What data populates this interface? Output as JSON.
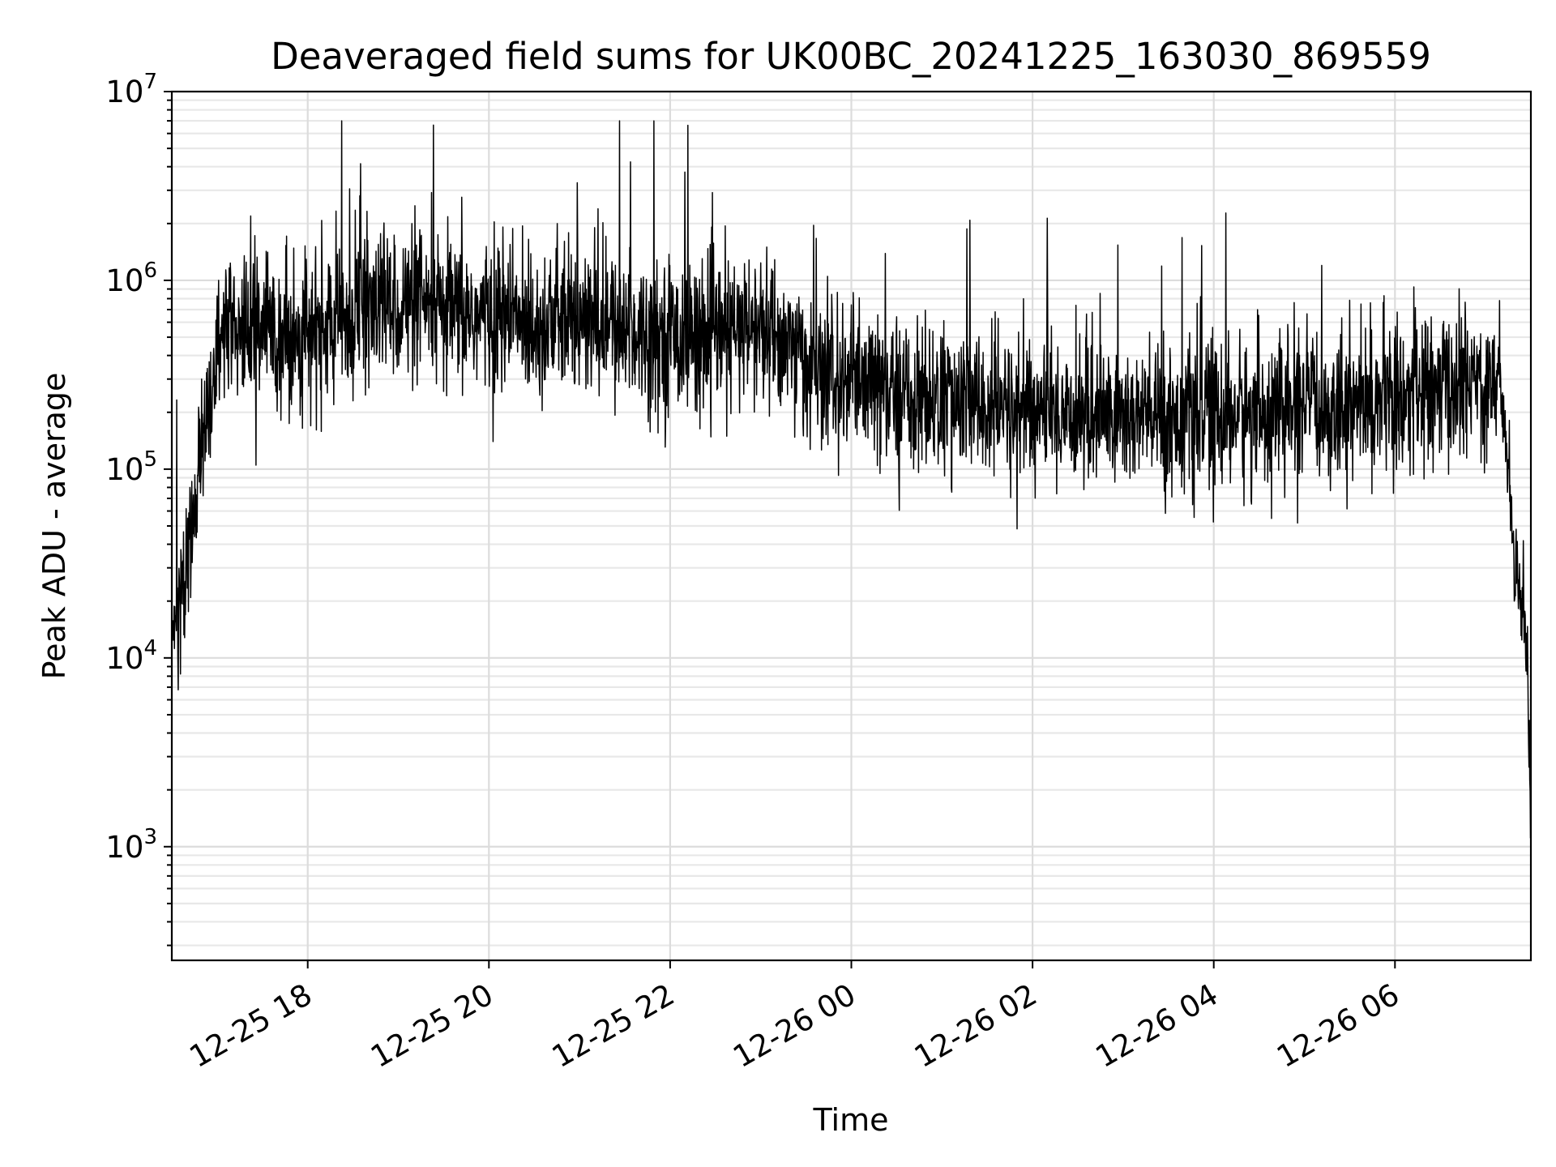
{
  "chart_data": {
    "type": "line",
    "title": "Deaveraged field sums for UK00BC_20241225_163030_869559",
    "xlabel": "Time",
    "ylabel": "Peak ADU - average",
    "x_axis": "datetime",
    "xlim": [
      "2024-12-25 16:30",
      "2024-12-26 07:30"
    ],
    "xticks": [
      {
        "time": "2024-12-25 18:00",
        "label": "12-25 18"
      },
      {
        "time": "2024-12-25 20:00",
        "label": "12-25 20"
      },
      {
        "time": "2024-12-25 22:00",
        "label": "12-25 22"
      },
      {
        "time": "2024-12-26 00:00",
        "label": "12-26 00"
      },
      {
        "time": "2024-12-26 02:00",
        "label": "12-26 02"
      },
      {
        "time": "2024-12-26 04:00",
        "label": "12-26 04"
      },
      {
        "time": "2024-12-26 06:00",
        "label": "12-26 06"
      }
    ],
    "yscale": "log",
    "ylim": [
      250,
      10000000
    ],
    "yticks": [
      {
        "value": 1000,
        "base": "10",
        "exp": "3"
      },
      {
        "value": 10000,
        "base": "10",
        "exp": "4"
      },
      {
        "value": 100000,
        "base": "10",
        "exp": "5"
      },
      {
        "value": 1000000,
        "base": "10",
        "exp": "6"
      },
      {
        "value": 10000000,
        "base": "10",
        "exp": "7"
      }
    ],
    "grid": true,
    "legend": "none",
    "line_color": "#000000",
    "series": [
      {
        "x": [
          "2024-12-25 16:30",
          "2024-12-25 16:35",
          "2024-12-25 16:40",
          "2024-12-25 16:45",
          "2024-12-25 16:50",
          "2024-12-25 16:55",
          "2024-12-25 17:00",
          "2024-12-25 17:10",
          "2024-12-25 17:20",
          "2024-12-25 17:30",
          "2024-12-25 17:45",
          "2024-12-25 18:00",
          "2024-12-25 18:20",
          "2024-12-25 18:40",
          "2024-12-25 19:00",
          "2024-12-25 19:30",
          "2024-12-25 20:00",
          "2024-12-25 20:30",
          "2024-12-25 21:00",
          "2024-12-25 21:30",
          "2024-12-25 22:00",
          "2024-12-25 22:30",
          "2024-12-25 23:00",
          "2024-12-25 23:20",
          "2024-12-25 23:40",
          "2024-12-26 00:00",
          "2024-12-26 00:30",
          "2024-12-26 01:00",
          "2024-12-26 01:30",
          "2024-12-26 02:00",
          "2024-12-26 02:30",
          "2024-12-26 03:00",
          "2024-12-26 03:30",
          "2024-12-26 04:00",
          "2024-12-26 04:30",
          "2024-12-26 05:00",
          "2024-12-26 05:30",
          "2024-12-26 06:00",
          "2024-12-26 06:30",
          "2024-12-26 07:00",
          "2024-12-26 07:10",
          "2024-12-26 07:15",
          "2024-12-26 07:20",
          "2024-12-26 07:25",
          "2024-12-26 07:28",
          "2024-12-26 07:30"
        ],
        "y": [
          12000,
          20000,
          30000,
          60000,
          150000,
          250000,
          380000,
          500000,
          550000,
          580000,
          520000,
          500000,
          600000,
          700000,
          750000,
          650000,
          650000,
          600000,
          600000,
          550000,
          520000,
          500000,
          550000,
          450000,
          300000,
          280000,
          250000,
          230000,
          210000,
          200000,
          200000,
          190000,
          185000,
          190000,
          200000,
          210000,
          220000,
          240000,
          260000,
          300000,
          280000,
          100000,
          30000,
          20000,
          8000,
          1500
        ]
      }
    ]
  }
}
